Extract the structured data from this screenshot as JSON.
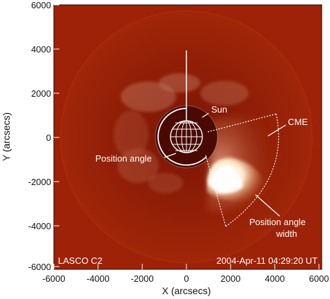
{
  "axes": {
    "xlabel": "X (arcsecs)",
    "ylabel": "Y (arcsecs)",
    "xticks": [
      "-6000",
      "-4000",
      "-2000",
      "0",
      "2000",
      "4000",
      "6000"
    ],
    "yticks": [
      "6000",
      "4000",
      "2000",
      "0",
      "-2000",
      "-4000",
      "-6000"
    ]
  },
  "annotations": {
    "sun": "Sun",
    "cme": "CME",
    "position_angle": "Position angle",
    "pa_width_line1": "Position angle",
    "pa_width_line2": "width"
  },
  "footer": {
    "instrument": "LASCO C2",
    "timestamp": "2004-Apr-11 04:29:20 UT"
  },
  "colors": {
    "background": "#9e2208",
    "corona_dark": "#7a1404",
    "cme_bright": "#fff4d8",
    "annotation": "#ffffff"
  }
}
